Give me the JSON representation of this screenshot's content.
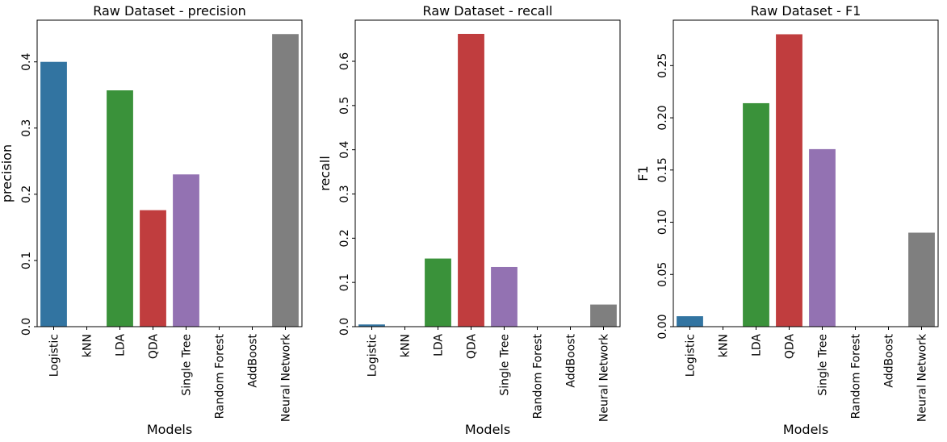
{
  "chart_data": [
    {
      "type": "bar",
      "title": "Raw Dataset - precision",
      "xlabel": "Models",
      "ylabel": "precision",
      "categories": [
        "Logistic",
        "kNN",
        "LDA",
        "QDA",
        "Single Tree",
        "Random Forest",
        "AddBoost",
        "Neural Network"
      ],
      "values": [
        0.4,
        0.0,
        0.357,
        0.176,
        0.23,
        0.0,
        0.0,
        0.442
      ],
      "ylim": [
        0,
        0.463
      ],
      "yticks": [
        "0.0",
        "0.1",
        "0.2",
        "0.3",
        "0.4"
      ],
      "grid": false,
      "legend": "none"
    },
    {
      "type": "bar",
      "title": "Raw Dataset - recall",
      "xlabel": "Models",
      "ylabel": "recall",
      "categories": [
        "Logistic",
        "kNN",
        "LDA",
        "QDA",
        "Single Tree",
        "Random Forest",
        "AddBoost",
        "Neural Network"
      ],
      "values": [
        0.005,
        0.0,
        0.154,
        0.662,
        0.135,
        0.0,
        0.0,
        0.05
      ],
      "ylim": [
        0,
        0.693
      ],
      "yticks": [
        "0.0",
        "0.1",
        "0.2",
        "0.3",
        "0.4",
        "0.5",
        "0.6"
      ],
      "grid": false,
      "legend": "none"
    },
    {
      "type": "bar",
      "title": "Raw Dataset - F1",
      "xlabel": "Models",
      "ylabel": "F1",
      "categories": [
        "Logistic",
        "kNN",
        "LDA",
        "QDA",
        "Single Tree",
        "Random Forest",
        "AddBoost",
        "Neural Network"
      ],
      "values": [
        0.01,
        0.0,
        0.214,
        0.28,
        0.17,
        0.0,
        0.0,
        0.09
      ],
      "ylim": [
        0,
        0.2935
      ],
      "yticks": [
        "0.00",
        "0.05",
        "0.10",
        "0.15",
        "0.20",
        "0.25"
      ],
      "grid": false,
      "legend": "none"
    }
  ],
  "palette": [
    "#3274a1",
    "#e1812c",
    "#3a923a",
    "#c03d3e",
    "#9372b2",
    "#845b53",
    "#d684bd",
    "#7f7f7f"
  ]
}
